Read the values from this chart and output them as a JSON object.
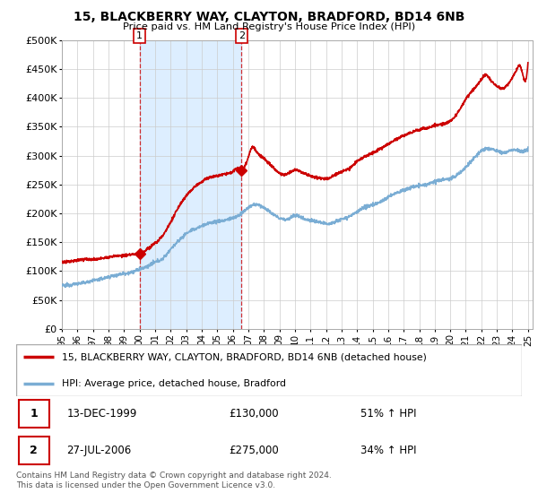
{
  "title": "15, BLACKBERRY WAY, CLAYTON, BRADFORD, BD14 6NB",
  "subtitle": "Price paid vs. HM Land Registry's House Price Index (HPI)",
  "property_label": "15, BLACKBERRY WAY, CLAYTON, BRADFORD, BD14 6NB (detached house)",
  "hpi_label": "HPI: Average price, detached house, Bradford",
  "transaction1_date": "13-DEC-1999",
  "transaction1_price": "£130,000",
  "transaction1_hpi": "51% ↑ HPI",
  "transaction2_date": "27-JUL-2006",
  "transaction2_price": "£275,000",
  "transaction2_hpi": "34% ↑ HPI",
  "footer": "Contains HM Land Registry data © Crown copyright and database right 2024.\nThis data is licensed under the Open Government Licence v3.0.",
  "property_color": "#cc0000",
  "hpi_color": "#7aadd4",
  "shade_color": "#ddeeff",
  "background_color": "#ffffff",
  "grid_color": "#cccccc",
  "ylim": [
    0,
    500000
  ],
  "yticks": [
    0,
    50000,
    100000,
    150000,
    200000,
    250000,
    300000,
    350000,
    400000,
    450000,
    500000
  ],
  "year_start": 1995,
  "year_end": 2025,
  "transaction1_year": 2000.0,
  "transaction1_price_val": 130000,
  "transaction2_year": 2006.56,
  "transaction2_price_val": 275000
}
